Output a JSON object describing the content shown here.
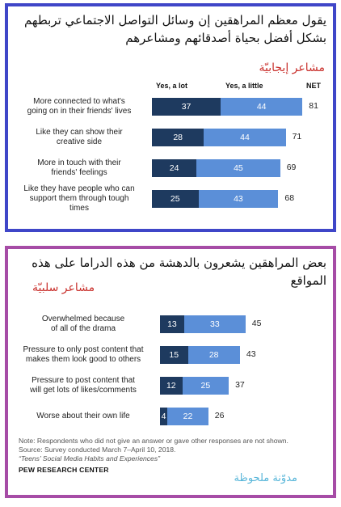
{
  "panel1": {
    "title_ar": "يقول معظم المراهقين إن وسائل التواصل الاجتماعي تربطهم بشكل أفضل بحياة أصدقائهم ومشاعرهم",
    "subtitle_ar": "مشاعر إيجابيّة"
  },
  "panel2": {
    "title_ar": "بعض المراهقين يشعرون بالدهشة من هذه الدراما على هذه المواقع",
    "subtitle_ar": "مشاعر سلبيّة"
  },
  "chart_data": [
    {
      "type": "bar",
      "stacked": true,
      "orientation": "horizontal",
      "series_headers": [
        "Yes, a lot",
        "Yes, a little"
      ],
      "net_header": "NET",
      "categories": [
        "More connected to what's going on in their friends' lives",
        "Like they can show their creative side",
        "More in touch with their friends' feelings",
        "Like they have people who can support them through tough times"
      ],
      "category_lines": [
        [
          "More connected to what's",
          "going on in their friends' lives"
        ],
        [
          "Like they can show their",
          "creative side"
        ],
        [
          "More in touch with their",
          "friends' feelings"
        ],
        [
          "Like they have people who can",
          "support them through tough",
          "times"
        ]
      ],
      "series": [
        {
          "name": "Yes, a lot",
          "values": [
            37,
            28,
            24,
            25
          ],
          "color": "#1e3a5f"
        },
        {
          "name": "Yes, a little",
          "values": [
            44,
            44,
            45,
            43
          ],
          "color": "#5b8fd8"
        }
      ],
      "net": [
        81,
        71,
        69,
        68
      ]
    },
    {
      "type": "bar",
      "stacked": true,
      "orientation": "horizontal",
      "categories": [
        "Overwhelmed because of all of the drama",
        "Pressure to only post content that makes them look good to others",
        "Pressure to post content that will get lots of likes/comments",
        "Worse about their own life"
      ],
      "category_lines": [
        [
          "Overwhelmed because",
          "of all of the drama"
        ],
        [
          "Pressure to only post content that",
          "makes them look good to others"
        ],
        [
          "Pressure to post content that",
          "will get lots of likes/comments"
        ],
        [
          "Worse about their own life"
        ]
      ],
      "series": [
        {
          "values": [
            13,
            15,
            12,
            4
          ],
          "color": "#1e3a5f"
        },
        {
          "values": [
            33,
            28,
            25,
            22
          ],
          "color": "#5b8fd8"
        }
      ],
      "net": [
        45,
        43,
        37,
        26
      ]
    }
  ],
  "footer": {
    "note_lines": [
      "Note: Respondents who did not give an answer or gave other responses are not shown.",
      "Source: Survey conducted March 7–April 10, 2018.",
      "“Teens’ Social Media Habits and Experiences”"
    ],
    "brand": "PEW RESEARCH CENTER",
    "blog_ar": "مدوّنة ملحوظة"
  }
}
